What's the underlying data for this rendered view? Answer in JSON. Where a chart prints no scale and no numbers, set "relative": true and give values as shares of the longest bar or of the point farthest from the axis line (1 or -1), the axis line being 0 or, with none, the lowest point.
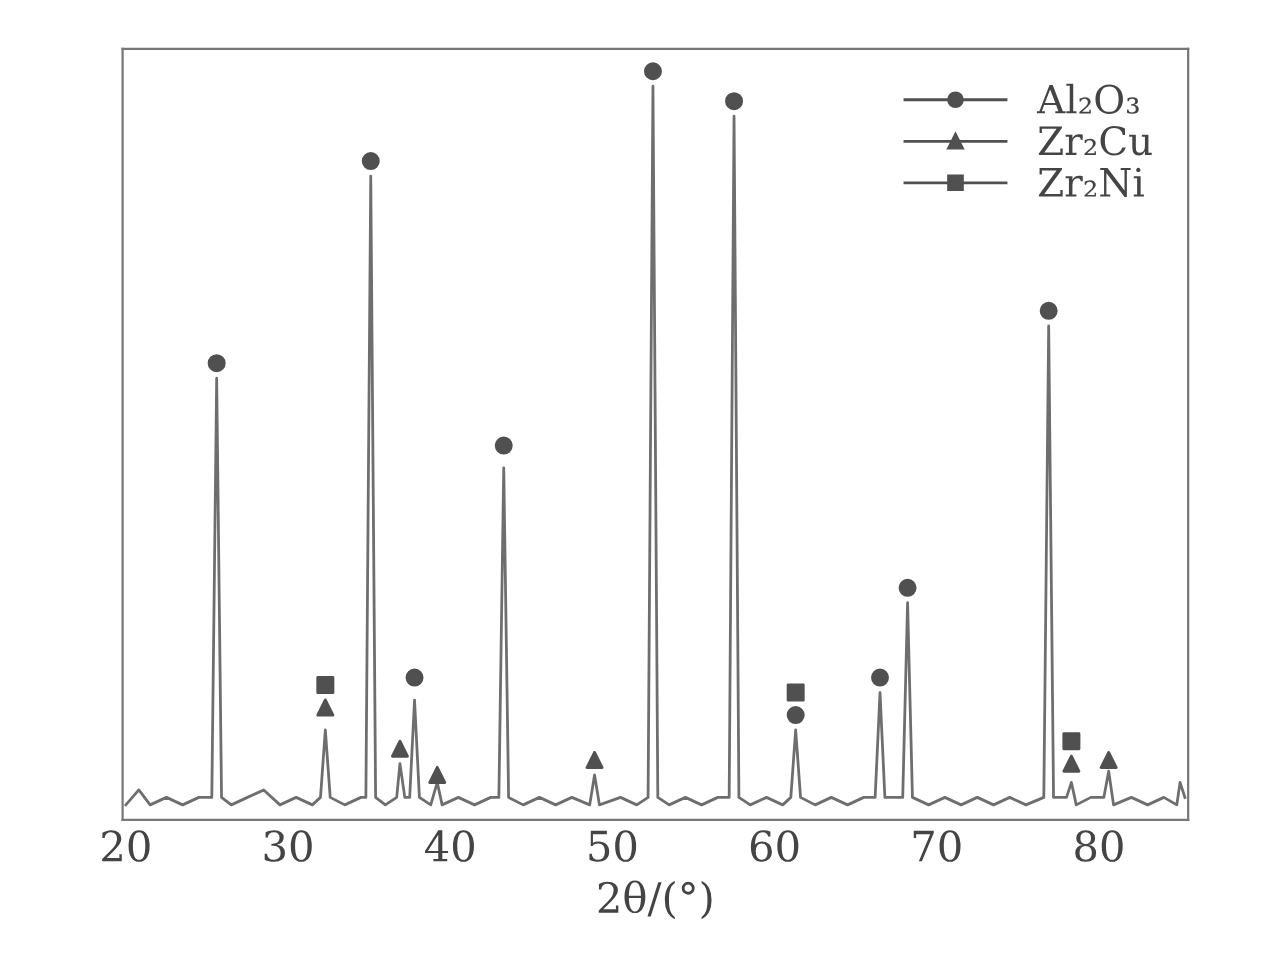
{
  "chart_data": {
    "type": "line",
    "relative": true,
    "xlabel": "2θ/(°)",
    "xlim": [
      19.8,
      85.5
    ],
    "xticks": [
      20,
      30,
      40,
      50,
      60,
      70,
      80
    ],
    "tick_labels": "x",
    "grid": false,
    "legend": "top right",
    "series": [
      {
        "color": "#6e6e6e",
        "line_style": "solid",
        "marker": "none",
        "x": [
          20,
          20.8,
          21.5,
          22.5,
          23.5,
          24.5,
          25.3,
          25.6,
          25.9,
          26.5,
          27.5,
          28.5,
          29.5,
          30.5,
          31.5,
          32.0,
          32.3,
          32.6,
          33.5,
          34.5,
          34.8,
          35.1,
          35.4,
          36.0,
          36.7,
          36.9,
          37.2,
          37.5,
          37.8,
          38.1,
          38.8,
          39.2,
          39.5,
          40.5,
          41.5,
          42.5,
          43.0,
          43.3,
          43.6,
          44.5,
          45.5,
          46.5,
          47.5,
          48.6,
          48.9,
          49.2,
          50.5,
          51.5,
          52.2,
          52.5,
          52.8,
          53.5,
          54.5,
          55.5,
          56.5,
          57.2,
          57.5,
          57.8,
          58.5,
          59.5,
          60.5,
          61.0,
          61.3,
          61.6,
          62.5,
          63.5,
          64.5,
          65.5,
          66.2,
          66.5,
          66.8,
          67.9,
          68.2,
          68.5,
          69.5,
          70.5,
          71.5,
          72.5,
          73.5,
          74.5,
          75.5,
          76.6,
          76.9,
          77.2,
          78.0,
          78.3,
          78.6,
          79.5,
          80.3,
          80.6,
          80.9,
          82,
          83,
          84,
          84.8,
          85.0,
          85.3
        ],
        "values": [
          0.02,
          0.04,
          0.02,
          0.03,
          0.02,
          0.03,
          0.03,
          0.59,
          0.03,
          0.02,
          0.03,
          0.04,
          0.02,
          0.03,
          0.02,
          0.03,
          0.12,
          0.03,
          0.02,
          0.03,
          0.03,
          0.86,
          0.03,
          0.02,
          0.03,
          0.075,
          0.03,
          0.03,
          0.16,
          0.03,
          0.02,
          0.05,
          0.02,
          0.03,
          0.02,
          0.03,
          0.03,
          0.47,
          0.03,
          0.02,
          0.03,
          0.02,
          0.03,
          0.02,
          0.06,
          0.02,
          0.03,
          0.02,
          0.03,
          0.98,
          0.03,
          0.02,
          0.03,
          0.02,
          0.03,
          0.03,
          0.94,
          0.03,
          0.02,
          0.03,
          0.02,
          0.03,
          0.12,
          0.03,
          0.02,
          0.03,
          0.02,
          0.03,
          0.03,
          0.17,
          0.03,
          0.03,
          0.29,
          0.03,
          0.02,
          0.03,
          0.02,
          0.03,
          0.02,
          0.03,
          0.02,
          0.03,
          0.66,
          0.03,
          0.03,
          0.05,
          0.02,
          0.03,
          0.03,
          0.065,
          0.02,
          0.03,
          0.02,
          0.03,
          0.02,
          0.05,
          0.03
        ]
      },
      {
        "type": "scatter",
        "name": "Al₂O₃",
        "color": "#505050",
        "marker": "circle",
        "x": [
          25.6,
          35.1,
          37.8,
          43.3,
          52.5,
          57.5,
          61.3,
          66.5,
          68.2,
          76.9
        ],
        "values": [
          0.61,
          0.88,
          0.19,
          0.5,
          1.0,
          0.96,
          0.14,
          0.19,
          0.31,
          0.68
        ]
      },
      {
        "type": "scatter",
        "name": "Zr₂Cu",
        "color": "#505050",
        "marker": "triangle",
        "x": [
          32.3,
          36.9,
          39.2,
          48.9,
          78.3,
          80.6
        ],
        "values": [
          0.15,
          0.095,
          0.06,
          0.08,
          0.075,
          0.08
        ]
      },
      {
        "type": "scatter",
        "name": "Zr₂Ni",
        "color": "#505050",
        "marker": "square",
        "x": [
          32.3,
          61.3,
          78.3
        ],
        "values": [
          0.18,
          0.17,
          0.105
        ]
      }
    ]
  }
}
